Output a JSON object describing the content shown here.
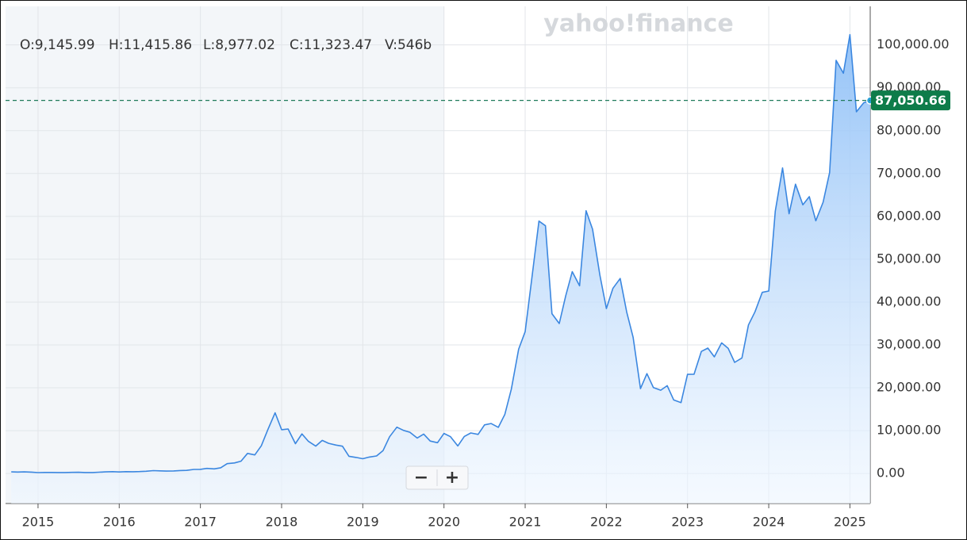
{
  "chart_data": {
    "type": "line",
    "watermark": "yahoo!finance",
    "ohlc": [
      "O:9,145.99",
      "H:11,415.86",
      "L:8,977.02",
      "C:11,323.47",
      "V:546b"
    ],
    "zoom_buttons": [
      "−",
      "+"
    ],
    "price_line": {
      "value": 87050.66,
      "label": "87,050.66"
    },
    "x": [
      2014.67,
      2014.75,
      2014.83,
      2014.92,
      2015,
      2015.08,
      2015.17,
      2015.25,
      2015.33,
      2015.42,
      2015.5,
      2015.58,
      2015.67,
      2015.75,
      2015.83,
      2015.92,
      2016,
      2016.08,
      2016.17,
      2016.25,
      2016.33,
      2016.42,
      2016.5,
      2016.58,
      2016.67,
      2016.75,
      2016.83,
      2016.92,
      2017,
      2017.08,
      2017.17,
      2017.25,
      2017.33,
      2017.42,
      2017.5,
      2017.58,
      2017.67,
      2017.75,
      2017.83,
      2017.92,
      2018,
      2018.08,
      2018.17,
      2018.25,
      2018.33,
      2018.42,
      2018.5,
      2018.58,
      2018.67,
      2018.75,
      2018.83,
      2018.92,
      2019,
      2019.08,
      2019.17,
      2019.25,
      2019.33,
      2019.42,
      2019.5,
      2019.58,
      2019.67,
      2019.75,
      2019.83,
      2019.92,
      2020,
      2020.08,
      2020.17,
      2020.25,
      2020.33,
      2020.42,
      2020.5,
      2020.58,
      2020.67,
      2020.75,
      2020.83,
      2020.92,
      2021,
      2021.08,
      2021.17,
      2021.25,
      2021.33,
      2021.42,
      2021.5,
      2021.58,
      2021.67,
      2021.75,
      2021.83,
      2021.92,
      2022,
      2022.08,
      2022.17,
      2022.25,
      2022.33,
      2022.42,
      2022.5,
      2022.58,
      2022.67,
      2022.75,
      2022.83,
      2022.92,
      2023,
      2023.08,
      2023.17,
      2023.25,
      2023.33,
      2023.42,
      2023.5,
      2023.58,
      2023.67,
      2023.75,
      2023.83,
      2023.92,
      2024,
      2024.08,
      2024.17,
      2024.25,
      2024.33,
      2024.42,
      2024.5,
      2024.58,
      2024.67,
      2024.75,
      2024.83,
      2024.92,
      2025,
      2025.08,
      2025.17,
      2025.25
    ],
    "series": [
      {
        "color": "#3b87e0",
        "values": [
          386,
          338,
          378,
          320,
          217,
          254,
          244,
          236,
          230,
          263,
          284,
          230,
          236,
          314,
          377,
          430,
          368,
          437,
          416,
          448,
          531,
          673,
          624,
          575,
          609,
          701,
          742,
          963,
          970,
          1190,
          1080,
          1350,
          2300,
          2480,
          2880,
          4700,
          4340,
          6470,
          10230,
          14160,
          10220,
          10400,
          6970,
          9240,
          7500,
          6400,
          7730,
          7040,
          6630,
          6370,
          4020,
          3740,
          3460,
          3850,
          4100,
          5350,
          8570,
          10820,
          10080,
          9630,
          8290,
          9200,
          7570,
          7190,
          9350,
          8600,
          6440,
          8660,
          9460,
          9140,
          11350,
          11660,
          10780,
          13800,
          19700,
          29000,
          33100,
          45200,
          58900,
          57800,
          37300,
          35000,
          41500,
          47100,
          43800,
          61300,
          57000,
          46300,
          38500,
          43200,
          45500,
          37700,
          31800,
          19800,
          23300,
          20050,
          19430,
          20500,
          17170,
          16550,
          23140,
          23150,
          28480,
          29270,
          27220,
          30480,
          29230,
          25930,
          26970,
          34670,
          37720,
          42270,
          42580,
          61200,
          71300,
          60600,
          67500,
          62700,
          64600,
          58970,
          63300,
          70200,
          96400,
          93400,
          102400,
          84400,
          86500,
          87050.66
        ]
      }
    ],
    "xlim": [
      2014.6,
      2025.25
    ],
    "xticks": [
      2015,
      2016,
      2017,
      2018,
      2019,
      2020,
      2021,
      2022,
      2023,
      2024,
      2025
    ],
    "ylim": [
      -7000,
      109000
    ],
    "yticks": [
      {
        "value": 0,
        "label": "0.00"
      },
      {
        "value": 10000,
        "label": "10,000.00"
      },
      {
        "value": 20000,
        "label": "20,000.00"
      },
      {
        "value": 30000,
        "label": "30,000.00"
      },
      {
        "value": 40000,
        "label": "40,000.00"
      },
      {
        "value": 50000,
        "label": "50,000.00"
      },
      {
        "value": 60000,
        "label": "60,000.00"
      },
      {
        "value": 70000,
        "label": "70,000.00"
      },
      {
        "value": 80000,
        "label": "80,000.00"
      },
      {
        "value": 90000,
        "label": "90,000.00"
      },
      {
        "value": 100000,
        "label": "100,000.00"
      }
    ],
    "grid": true
  }
}
